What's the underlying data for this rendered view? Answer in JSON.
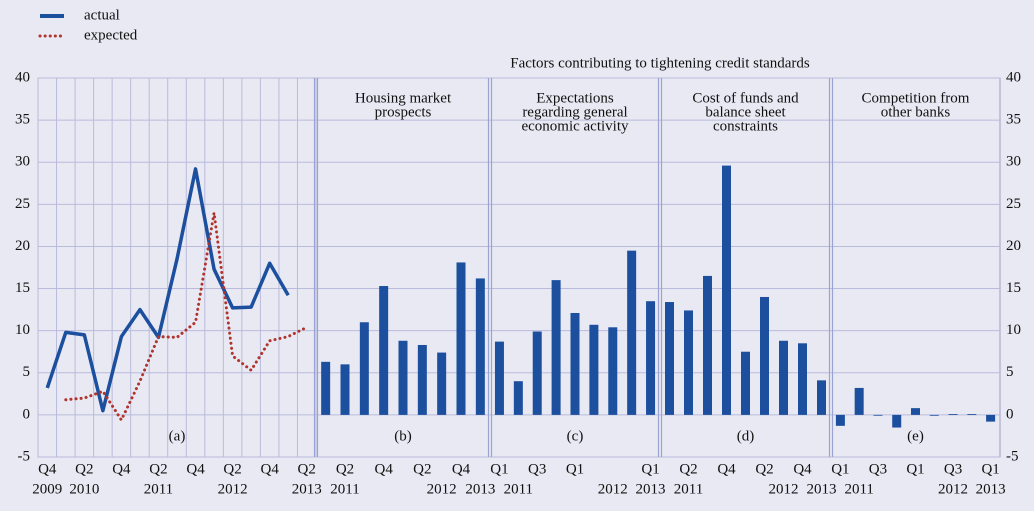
{
  "title": "Factors contributing to tightening credit standards",
  "chart_data": [
    {
      "type": "line",
      "label": "(a)",
      "categories": [
        "Q4",
        null,
        "Q2",
        null,
        "Q4",
        null,
        "Q2",
        null,
        "Q4",
        null,
        "Q2",
        null,
        "Q4",
        null,
        "Q2"
      ],
      "years": [
        "2009",
        null,
        "2010",
        null,
        null,
        null,
        "2011",
        null,
        null,
        null,
        "2012",
        null,
        null,
        null,
        "2013"
      ],
      "ylim": [
        -5,
        40
      ],
      "yticks": [
        -5,
        0,
        5,
        10,
        15,
        20,
        25,
        30,
        35,
        40
      ],
      "grid": true,
      "series": [
        {
          "name": "actual",
          "color": "#1c4f9e",
          "style": "solid",
          "values": [
            3.2,
            9.8,
            9.5,
            0.5,
            9.3,
            12.5,
            9.2,
            18.5,
            29.2,
            17.3,
            12.7,
            12.8,
            18,
            14.2,
            null
          ]
        },
        {
          "name": "expected",
          "color": "#b0342c",
          "style": "dotted",
          "values": [
            null,
            1.8,
            2.0,
            2.8,
            -0.6,
            4,
            9.3,
            9.2,
            11,
            24,
            7,
            5.3,
            8.8,
            9.3,
            10.4
          ]
        }
      ]
    },
    {
      "type": "bar",
      "label": "(b)",
      "title": [
        "Housing market",
        "prospects"
      ],
      "color": "#1c4f9e",
      "categories": [
        null,
        "Q2",
        null,
        "Q4",
        null,
        "Q2",
        null,
        "Q4",
        null
      ],
      "years": [
        null,
        "2011",
        null,
        null,
        null,
        null,
        "2012",
        null,
        "2013"
      ],
      "values": [
        6.3,
        6.0,
        11,
        15.3,
        8.8,
        8.3,
        7.4,
        18.1,
        16.2
      ]
    },
    {
      "type": "bar",
      "label": "(c)",
      "title": [
        "Expectations",
        "regarding general",
        "economic activity"
      ],
      "color": "#1c4f9e",
      "categories": [
        "Q1",
        null,
        "Q3",
        null,
        "Q1",
        null,
        null,
        null,
        "Q1"
      ],
      "years": [
        null,
        "2011",
        null,
        null,
        null,
        null,
        "2012",
        null,
        "2013"
      ],
      "values": [
        8.7,
        4,
        9.9,
        16,
        12.1,
        10.7,
        10.4,
        19.5,
        13.5
      ]
    },
    {
      "type": "bar",
      "label": "(d)",
      "title": [
        "Cost of funds and",
        "balance sheet",
        "constraints"
      ],
      "color": "#1c4f9e",
      "categories": [
        null,
        "Q2",
        null,
        "Q4",
        null,
        "Q2",
        null,
        "Q4",
        null
      ],
      "years": [
        null,
        "2011",
        null,
        null,
        null,
        null,
        "2012",
        null,
        "2013"
      ],
      "values": [
        13.4,
        12.4,
        16.5,
        29.6,
        7.5,
        14,
        8.8,
        8.5,
        4.1
      ]
    },
    {
      "type": "bar",
      "label": "(e)",
      "title": [
        "Competition from",
        "other banks"
      ],
      "color": "#1c4f9e",
      "categories": [
        "Q1",
        null,
        "Q3",
        null,
        "Q1",
        null,
        "Q3",
        null,
        "Q1"
      ],
      "years": [
        null,
        "2011",
        null,
        null,
        null,
        null,
        "2012",
        null,
        "2013"
      ],
      "values": [
        -1.3,
        3.2,
        0,
        -1.5,
        0.8,
        -0.1,
        0.1,
        0.1,
        -0.8
      ],
      "y2lim": [
        -5,
        40
      ],
      "y2ticks": [
        -5,
        0,
        5,
        10,
        15,
        20,
        25,
        30,
        35,
        40
      ]
    }
  ]
}
